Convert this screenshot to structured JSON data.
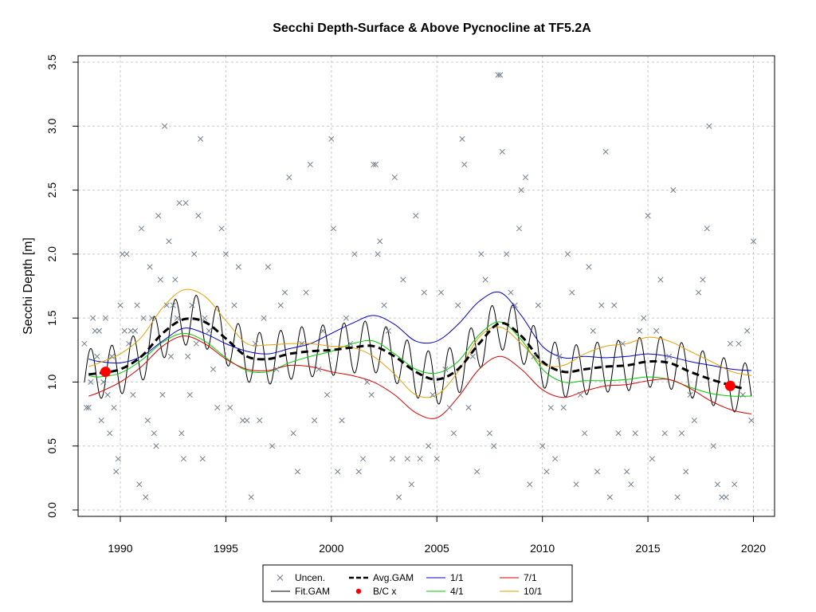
{
  "chart_data": {
    "type": "scatter",
    "title": "Secchi Depth-Surface & Above Pycnocline at TF5.2A",
    "xlabel": "",
    "ylabel": "Secchi Depth [m]",
    "xlim": [
      1988.0,
      2021.0
    ],
    "ylim": [
      -0.05,
      3.55
    ],
    "x_ticks": [
      1990,
      1995,
      2000,
      2005,
      2010,
      2015,
      2020
    ],
    "y_ticks": [
      0.0,
      0.5,
      1.0,
      1.5,
      2.0,
      2.5,
      3.0,
      3.5
    ],
    "y_tick_labels": [
      "0.0",
      "0.5",
      "1.0",
      "1.5",
      "2.0",
      "2.5",
      "3.0",
      "3.5"
    ],
    "grid": true,
    "legend_position": "bottom-center",
    "colors": {
      "points": "#708090",
      "fit": "#000000",
      "avg": "#000000",
      "bc": "#ff0000",
      "s1_1": "#0000cc",
      "s4_1": "#00cc00",
      "s7_1": "#dd0000",
      "s10_1": "#e69f00"
    },
    "legend": [
      {
        "label": "Uncen.",
        "marker": "x",
        "color": "#708090"
      },
      {
        "label": "Fit.GAM",
        "marker": "line",
        "color": "#000000"
      },
      {
        "label": "Avg.GAM",
        "marker": "dashed",
        "color": "#000000"
      },
      {
        "label": "B/C x",
        "marker": "dot",
        "color": "#ff0000"
      },
      {
        "label": "1/1",
        "marker": "line",
        "color": "#0000cc"
      },
      {
        "label": "4/1",
        "marker": "line",
        "color": "#00cc00"
      },
      {
        "label": "7/1",
        "marker": "line",
        "color": "#dd0000"
      },
      {
        "label": "10/1",
        "marker": "line",
        "color": "#e69f00"
      }
    ],
    "bc_points": [
      {
        "x": 1989.3,
        "y": 1.08
      },
      {
        "x": 2018.9,
        "y": 0.97
      }
    ],
    "series": [
      {
        "name": "Avg.GAM",
        "x": [
          1988.5,
          1989.0,
          1990.0,
          1991.0,
          1992.0,
          1993.0,
          1994.0,
          1995.0,
          1996.0,
          1997.0,
          1998.0,
          1999.0,
          2000.0,
          2001.0,
          2002.0,
          2003.0,
          2004.0,
          2005.0,
          2006.0,
          2007.0,
          2008.0,
          2009.0,
          2010.0,
          2011.0,
          2012.0,
          2013.0,
          2014.0,
          2015.0,
          2016.0,
          2017.0,
          2018.0,
          2019.0,
          2019.5
        ],
        "values": [
          1.06,
          1.07,
          1.1,
          1.2,
          1.38,
          1.49,
          1.47,
          1.34,
          1.2,
          1.18,
          1.22,
          1.24,
          1.25,
          1.27,
          1.28,
          1.2,
          1.08,
          1.02,
          1.1,
          1.3,
          1.46,
          1.36,
          1.16,
          1.08,
          1.1,
          1.12,
          1.13,
          1.16,
          1.15,
          1.08,
          1.02,
          0.97,
          0.95
        ]
      },
      {
        "name": "1/1",
        "x": [
          1988.5,
          1989.0,
          1990.0,
          1991.0,
          1992.0,
          1993.0,
          1994.0,
          1995.0,
          1996.0,
          1997.0,
          1998.0,
          1999.0,
          2000.0,
          2001.0,
          2002.0,
          2003.0,
          2004.0,
          2005.0,
          2006.0,
          2007.0,
          2008.0,
          2009.0,
          2010.0,
          2011.0,
          2012.0,
          2013.0,
          2014.0,
          2015.0,
          2016.0,
          2017.0,
          2018.0,
          2019.0,
          2019.9
        ],
        "values": [
          1.18,
          1.16,
          1.15,
          1.2,
          1.32,
          1.42,
          1.38,
          1.3,
          1.24,
          1.22,
          1.26,
          1.3,
          1.38,
          1.46,
          1.52,
          1.45,
          1.32,
          1.32,
          1.45,
          1.63,
          1.7,
          1.52,
          1.28,
          1.19,
          1.2,
          1.19,
          1.2,
          1.22,
          1.2,
          1.16,
          1.13,
          1.1,
          1.09
        ]
      },
      {
        "name": "4/1",
        "x": [
          1988.5,
          1989.0,
          1990.0,
          1991.0,
          1992.0,
          1993.0,
          1994.0,
          1995.0,
          1996.0,
          1997.0,
          1998.0,
          1999.0,
          2000.0,
          2001.0,
          2002.0,
          2003.0,
          2004.0,
          2005.0,
          2006.0,
          2007.0,
          2008.0,
          2009.0,
          2010.0,
          2011.0,
          2012.0,
          2013.0,
          2014.0,
          2015.0,
          2016.0,
          2017.0,
          2018.0,
          2019.0,
          2019.9
        ],
        "values": [
          1.05,
          1.04,
          1.07,
          1.17,
          1.31,
          1.38,
          1.32,
          1.19,
          1.09,
          1.08,
          1.15,
          1.2,
          1.24,
          1.3,
          1.32,
          1.22,
          1.1,
          1.07,
          1.16,
          1.37,
          1.47,
          1.33,
          1.1,
          1.0,
          1.01,
          1.01,
          1.02,
          1.04,
          1.02,
          0.96,
          0.91,
          0.89,
          0.89
        ]
      },
      {
        "name": "7/1",
        "x": [
          1988.5,
          1989.0,
          1990.0,
          1991.0,
          1992.0,
          1993.0,
          1994.0,
          1995.0,
          1996.0,
          1997.0,
          1998.0,
          1999.0,
          2000.0,
          2001.0,
          2002.0,
          2003.0,
          2004.0,
          2005.0,
          2006.0,
          2007.0,
          2008.0,
          2009.0,
          2010.0,
          2011.0,
          2012.0,
          2013.0,
          2014.0,
          2015.0,
          2016.0,
          2017.0,
          2018.0,
          2019.0,
          2019.9
        ],
        "values": [
          0.89,
          0.92,
          1.0,
          1.12,
          1.28,
          1.36,
          1.3,
          1.18,
          1.1,
          1.09,
          1.13,
          1.12,
          1.08,
          1.05,
          1.0,
          0.9,
          0.76,
          0.72,
          0.88,
          1.1,
          1.2,
          1.1,
          0.94,
          0.88,
          0.93,
          0.97,
          0.98,
          1.01,
          1.02,
          0.95,
          0.85,
          0.78,
          0.75
        ]
      },
      {
        "name": "10/1",
        "x": [
          1988.5,
          1989.0,
          1990.0,
          1991.0,
          1992.0,
          1993.0,
          1994.0,
          1995.0,
          1996.0,
          1997.0,
          1998.0,
          1999.0,
          2000.0,
          2001.0,
          2002.0,
          2003.0,
          2004.0,
          2005.0,
          2006.0,
          2007.0,
          2008.0,
          2009.0,
          2010.0,
          2011.0,
          2012.0,
          2013.0,
          2014.0,
          2015.0,
          2016.0,
          2017.0,
          2018.0,
          2019.0,
          2019.9
        ],
        "values": [
          1.12,
          1.15,
          1.22,
          1.35,
          1.58,
          1.72,
          1.67,
          1.48,
          1.3,
          1.29,
          1.3,
          1.3,
          1.28,
          1.27,
          1.2,
          1.06,
          0.9,
          0.9,
          1.08,
          1.35,
          1.43,
          1.3,
          1.14,
          1.13,
          1.22,
          1.28,
          1.3,
          1.35,
          1.32,
          1.24,
          1.16,
          1.08,
          1.05
        ]
      }
    ],
    "fit_gam": {
      "name": "Fit.GAM",
      "baseline_series": "Avg.GAM",
      "seasonal_amplitude": 0.2,
      "period_years": 1.0,
      "x_range": [
        1988.3,
        2019.9
      ]
    },
    "points": [
      [
        1988.3,
        1.3
      ],
      [
        1988.4,
        0.8
      ],
      [
        1988.5,
        0.8
      ],
      [
        1988.6,
        1.0
      ],
      [
        1988.7,
        1.5
      ],
      [
        1988.8,
        1.4
      ],
      [
        1988.9,
        1.2
      ],
      [
        1989.0,
        1.4
      ],
      [
        1989.1,
        0.7
      ],
      [
        1989.2,
        1.0
      ],
      [
        1989.3,
        1.5
      ],
      [
        1989.4,
        0.9
      ],
      [
        1989.5,
        0.6
      ],
      [
        1989.6,
        1.2
      ],
      [
        1989.7,
        0.8
      ],
      [
        1989.8,
        0.3
      ],
      [
        1989.9,
        0.4
      ],
      [
        1990.0,
        1.6
      ],
      [
        1990.1,
        2.0
      ],
      [
        1990.2,
        1.4
      ],
      [
        1990.3,
        2.0
      ],
      [
        1990.4,
        1.3
      ],
      [
        1990.5,
        1.4
      ],
      [
        1990.6,
        0.9
      ],
      [
        1990.7,
        1.4
      ],
      [
        1990.8,
        1.6
      ],
      [
        1990.9,
        0.2
      ],
      [
        1991.0,
        2.2
      ],
      [
        1991.1,
        1.5
      ],
      [
        1991.2,
        0.1
      ],
      [
        1991.3,
        0.7
      ],
      [
        1991.4,
        1.9
      ],
      [
        1991.5,
        1.5
      ],
      [
        1991.6,
        0.6
      ],
      [
        1991.7,
        0.5
      ],
      [
        1991.8,
        2.3
      ],
      [
        1991.9,
        1.8
      ],
      [
        1992.0,
        0.9
      ],
      [
        1992.1,
        3.0
      ],
      [
        1992.2,
        1.6
      ],
      [
        1992.3,
        2.1
      ],
      [
        1992.4,
        1.2
      ],
      [
        1992.5,
        1.6
      ],
      [
        1992.6,
        1.8
      ],
      [
        1992.7,
        1.5
      ],
      [
        1992.8,
        2.4
      ],
      [
        1992.9,
        0.6
      ],
      [
        1993.0,
        0.4
      ],
      [
        1993.1,
        2.4
      ],
      [
        1993.2,
        1.2
      ],
      [
        1993.3,
        0.9
      ],
      [
        1993.4,
        1.6
      ],
      [
        1993.5,
        2.0
      ],
      [
        1993.6,
        1.3
      ],
      [
        1993.7,
        2.3
      ],
      [
        1993.8,
        2.9
      ],
      [
        1993.9,
        0.4
      ],
      [
        1994.0,
        1.5
      ],
      [
        1994.2,
        1.4
      ],
      [
        1994.4,
        1.1
      ],
      [
        1994.6,
        0.8
      ],
      [
        1994.8,
        2.2
      ],
      [
        1995.0,
        2.0
      ],
      [
        1995.2,
        0.8
      ],
      [
        1995.4,
        1.6
      ],
      [
        1995.6,
        1.9
      ],
      [
        1995.8,
        0.7
      ],
      [
        1996.0,
        0.7
      ],
      [
        1996.2,
        0.1
      ],
      [
        1996.4,
        1.3
      ],
      [
        1996.6,
        0.7
      ],
      [
        1996.8,
        1.5
      ],
      [
        1997.0,
        1.9
      ],
      [
        1997.2,
        0.5
      ],
      [
        1997.4,
        1.1
      ],
      [
        1997.6,
        1.6
      ],
      [
        1997.8,
        1.7
      ],
      [
        1998.0,
        2.6
      ],
      [
        1998.2,
        0.6
      ],
      [
        1998.4,
        0.3
      ],
      [
        1998.6,
        1.3
      ],
      [
        1998.8,
        1.7
      ],
      [
        1999.0,
        2.7
      ],
      [
        1999.2,
        0.7
      ],
      [
        1999.4,
        1.1
      ],
      [
        1999.6,
        1.4
      ],
      [
        1999.8,
        0.9
      ],
      [
        2000.0,
        2.9
      ],
      [
        2000.1,
        2.2
      ],
      [
        2000.3,
        0.3
      ],
      [
        2000.5,
        0.7
      ],
      [
        2000.7,
        1.5
      ],
      [
        2000.9,
        1.3
      ],
      [
        2001.1,
        2.0
      ],
      [
        2001.3,
        0.3
      ],
      [
        2001.5,
        0.4
      ],
      [
        2001.7,
        1.0
      ],
      [
        2001.9,
        0.9
      ],
      [
        2002.0,
        2.7
      ],
      [
        2002.1,
        2.7
      ],
      [
        2002.2,
        2.0
      ],
      [
        2002.3,
        2.1
      ],
      [
        2002.5,
        1.6
      ],
      [
        2002.7,
        1.4
      ],
      [
        2002.9,
        0.4
      ],
      [
        2003.0,
        2.6
      ],
      [
        2003.2,
        0.1
      ],
      [
        2003.4,
        1.8
      ],
      [
        2003.6,
        0.4
      ],
      [
        2003.8,
        0.2
      ],
      [
        2004.0,
        2.3
      ],
      [
        2004.2,
        0.4
      ],
      [
        2004.4,
        1.7
      ],
      [
        2004.6,
        0.5
      ],
      [
        2004.8,
        0.9
      ],
      [
        2005.0,
        0.4
      ],
      [
        2005.2,
        1.7
      ],
      [
        2005.4,
        1.1
      ],
      [
        2005.6,
        0.8
      ],
      [
        2005.8,
        0.6
      ],
      [
        2006.0,
        1.6
      ],
      [
        2006.2,
        2.9
      ],
      [
        2006.3,
        2.7
      ],
      [
        2006.5,
        0.8
      ],
      [
        2006.7,
        1.2
      ],
      [
        2006.9,
        0.3
      ],
      [
        2007.1,
        2.0
      ],
      [
        2007.3,
        1.8
      ],
      [
        2007.5,
        0.6
      ],
      [
        2007.7,
        0.5
      ],
      [
        2007.9,
        3.4
      ],
      [
        2008.0,
        3.4
      ],
      [
        2008.1,
        2.8
      ],
      [
        2008.3,
        2.0
      ],
      [
        2008.5,
        1.7
      ],
      [
        2008.7,
        1.6
      ],
      [
        2008.9,
        2.2
      ],
      [
        2009.0,
        2.5
      ],
      [
        2009.2,
        2.6
      ],
      [
        2009.4,
        0.2
      ],
      [
        2009.6,
        1.2
      ],
      [
        2009.8,
        1.6
      ],
      [
        2010.0,
        0.5
      ],
      [
        2010.2,
        0.3
      ],
      [
        2010.4,
        0.8
      ],
      [
        2010.6,
        0.4
      ],
      [
        2010.8,
        1.2
      ],
      [
        2011.0,
        0.8
      ],
      [
        2011.2,
        2.0
      ],
      [
        2011.4,
        1.7
      ],
      [
        2011.6,
        0.2
      ],
      [
        2011.8,
        0.9
      ],
      [
        2012.0,
        0.6
      ],
      [
        2012.2,
        1.9
      ],
      [
        2012.4,
        1.4
      ],
      [
        2012.6,
        0.3
      ],
      [
        2012.8,
        1.6
      ],
      [
        2013.0,
        2.8
      ],
      [
        2013.2,
        0.1
      ],
      [
        2013.4,
        1.6
      ],
      [
        2013.6,
        0.6
      ],
      [
        2013.8,
        1.3
      ],
      [
        2014.0,
        0.3
      ],
      [
        2014.2,
        0.2
      ],
      [
        2014.4,
        0.6
      ],
      [
        2014.6,
        1.4
      ],
      [
        2014.8,
        1.5
      ],
      [
        2015.0,
        2.3
      ],
      [
        2015.2,
        0.4
      ],
      [
        2015.4,
        1.4
      ],
      [
        2015.6,
        1.8
      ],
      [
        2015.8,
        0.6
      ],
      [
        2016.0,
        1.2
      ],
      [
        2016.2,
        2.5
      ],
      [
        2016.4,
        0.1
      ],
      [
        2016.6,
        0.6
      ],
      [
        2016.8,
        0.3
      ],
      [
        2017.0,
        0.9
      ],
      [
        2017.2,
        0.7
      ],
      [
        2017.4,
        1.7
      ],
      [
        2017.6,
        1.8
      ],
      [
        2017.8,
        2.2
      ],
      [
        2017.9,
        3.0
      ],
      [
        2018.1,
        0.5
      ],
      [
        2018.3,
        0.2
      ],
      [
        2018.5,
        0.1
      ],
      [
        2018.7,
        0.1
      ],
      [
        2018.9,
        1.3
      ],
      [
        2019.1,
        0.2
      ],
      [
        2019.3,
        1.3
      ],
      [
        2019.5,
        0.9
      ],
      [
        2019.7,
        1.4
      ],
      [
        2019.9,
        0.7
      ],
      [
        2020.0,
        2.1
      ]
    ]
  }
}
